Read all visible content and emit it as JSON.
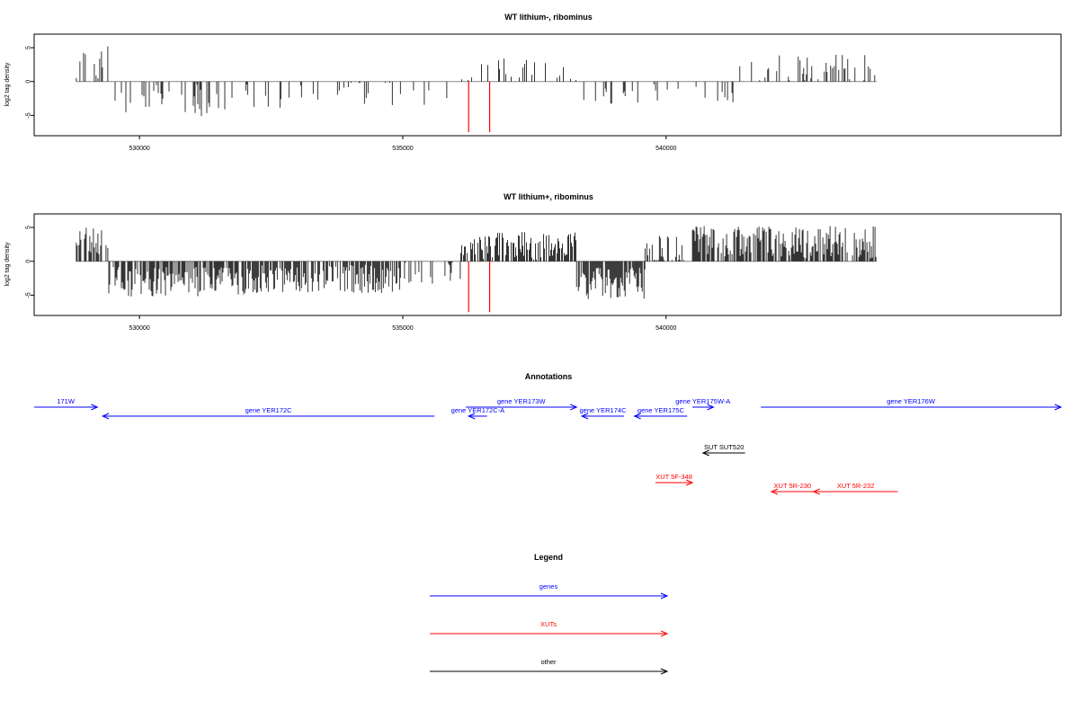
{
  "chart_data": [
    {
      "type": "bar",
      "title": "WT lithium-, ribominus",
      "ylabel": "log2 tag density",
      "xlim": [
        528000,
        547500
      ],
      "ylim": [
        -8,
        7
      ],
      "xticks": [
        530000,
        535000,
        540000
      ],
      "yticks": [
        -5,
        0,
        5
      ],
      "data_range": [
        528800,
        544000
      ],
      "series_color": "#000000",
      "highlight_color": "#ff0000",
      "highlights": [
        {
          "x": 536250,
          "y": -7.5
        },
        {
          "x": 536650,
          "y": -7.5
        }
      ],
      "segments": [
        {
          "from": 528800,
          "to": 529400,
          "mean": 3.0,
          "spread": 1.6,
          "density": 0.35
        },
        {
          "from": 529400,
          "to": 532000,
          "mean": -2.6,
          "spread": 1.6,
          "density": 0.25
        },
        {
          "from": 532000,
          "to": 535000,
          "mean": -2.2,
          "spread": 1.5,
          "density": 0.15
        },
        {
          "from": 535000,
          "to": 536100,
          "mean": -1.8,
          "spread": 1.2,
          "density": 0.08
        },
        {
          "from": 536100,
          "to": 538300,
          "mean": 1.8,
          "spread": 1.2,
          "density": 0.2
        },
        {
          "from": 538300,
          "to": 539800,
          "mean": -2.2,
          "spread": 1.4,
          "density": 0.18
        },
        {
          "from": 539800,
          "to": 541400,
          "mean": -1.6,
          "spread": 1.2,
          "density": 0.12
        },
        {
          "from": 541400,
          "to": 544000,
          "mean": 2.0,
          "spread": 1.3,
          "density": 0.22
        }
      ]
    },
    {
      "type": "bar",
      "title": "WT lithium+, ribominus",
      "ylabel": "log2 tag density",
      "xlim": [
        528000,
        547500
      ],
      "ylim": [
        -8,
        7
      ],
      "xticks": [
        530000,
        535000,
        540000
      ],
      "yticks": [
        -5,
        0,
        5
      ],
      "data_range": [
        528800,
        544000
      ],
      "series_color": "#000000",
      "highlight_color": "#ff0000",
      "highlights": [
        {
          "x": 536250,
          "y": -7.5
        },
        {
          "x": 536650,
          "y": -7.5
        }
      ],
      "segments": [
        {
          "from": 528800,
          "to": 529400,
          "mean": 2.8,
          "spread": 1.4,
          "density": 0.6
        },
        {
          "from": 529400,
          "to": 532000,
          "mean": -3.0,
          "spread": 1.4,
          "density": 0.7
        },
        {
          "from": 532000,
          "to": 535000,
          "mean": -2.6,
          "spread": 1.3,
          "density": 0.65
        },
        {
          "from": 535000,
          "to": 536100,
          "mean": -1.6,
          "spread": 1.2,
          "density": 0.3
        },
        {
          "from": 536100,
          "to": 538300,
          "mean": 2.3,
          "spread": 1.3,
          "density": 0.7
        },
        {
          "from": 538300,
          "to": 539600,
          "mean": -3.2,
          "spread": 1.6,
          "density": 0.85
        },
        {
          "from": 539600,
          "to": 540500,
          "mean": 1.6,
          "spread": 1.4,
          "density": 0.6
        },
        {
          "from": 540500,
          "to": 544000,
          "mean": 2.8,
          "spread": 1.5,
          "density": 0.8
        }
      ]
    }
  ],
  "annotations": {
    "title": "Annotations",
    "features": [
      {
        "label": "171W",
        "start": 528000,
        "end": 529200,
        "strand": "+",
        "track": "genes",
        "row": 0
      },
      {
        "label": "gene YER172C",
        "start": 529300,
        "end": 535600,
        "strand": "-",
        "track": "genes",
        "row": 1
      },
      {
        "label": "gene YER172C-A",
        "start": 536250,
        "end": 536600,
        "strand": "-",
        "track": "genes",
        "row": 1
      },
      {
        "label": "gene YER173W",
        "start": 536200,
        "end": 538300,
        "strand": "+",
        "track": "genes",
        "row": 0
      },
      {
        "label": "gene YER174C",
        "start": 538400,
        "end": 539200,
        "strand": "-",
        "track": "genes",
        "row": 1
      },
      {
        "label": "gene YER175C",
        "start": 539400,
        "end": 540400,
        "strand": "-",
        "track": "genes",
        "row": 1
      },
      {
        "label": "gene YER175W-A",
        "start": 540500,
        "end": 540900,
        "strand": "+",
        "track": "genes",
        "row": 0
      },
      {
        "label": "gene YER176W",
        "start": 541800,
        "end": 547500,
        "strand": "+",
        "track": "genes",
        "row": 0
      },
      {
        "label": "SUT SUT520",
        "start": 540700,
        "end": 541500,
        "strand": "-",
        "track": "other",
        "row": 4
      },
      {
        "label": "XUT 5F-348",
        "start": 539800,
        "end": 540500,
        "strand": "+",
        "track": "XUTs",
        "row": 6
      },
      {
        "label": "XUT 5R-230",
        "start": 542000,
        "end": 542800,
        "strand": "-",
        "track": "XUTs",
        "row": 7
      },
      {
        "label": "XUT 5R-232",
        "start": 542800,
        "end": 544400,
        "strand": "-",
        "track": "XUTs",
        "row": 7
      }
    ]
  },
  "legend": {
    "title": "Legend",
    "items": [
      {
        "label": "genes",
        "color": "#0000ff"
      },
      {
        "label": "XUTs",
        "color": "#ff0000"
      },
      {
        "label": "other",
        "color": "#000000"
      }
    ]
  },
  "colors": {
    "genes": "#0000ff",
    "XUTs": "#ff0000",
    "other": "#000000",
    "zero_line": "#888888"
  }
}
